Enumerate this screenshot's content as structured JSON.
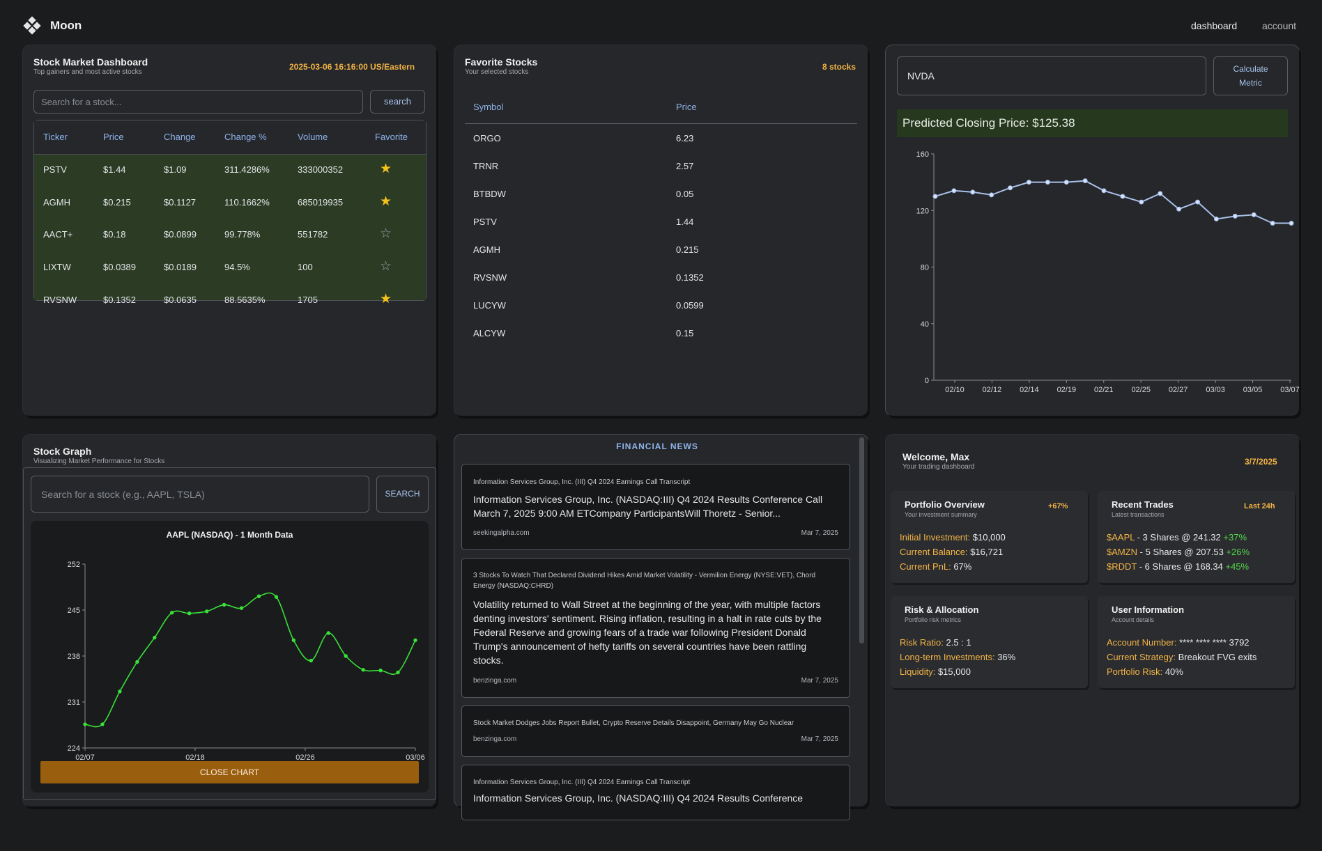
{
  "nav": {
    "brand": "Moon",
    "links": [
      "dashboard",
      "account"
    ]
  },
  "dashboard": {
    "title": "Stock Market Dashboard",
    "subtitle": "Top gainers and most active stocks",
    "datetime": "2025-03-06 16:16:00 US/Eastern",
    "search_placeholder": "Search for a stock...",
    "search_label": "search",
    "columns": [
      "Ticker",
      "Price",
      "Change",
      "Change %",
      "Volume",
      "Favorite"
    ],
    "rows": [
      {
        "ticker": "PSTV",
        "price": "$1.44",
        "change": "$1.09",
        "change_pct": "311.4286%",
        "volume": "333000352",
        "favorite": true
      },
      {
        "ticker": "AGMH",
        "price": "$0.215",
        "change": "$0.1127",
        "change_pct": "110.1662%",
        "volume": "685019935",
        "favorite": true
      },
      {
        "ticker": "AACT+",
        "price": "$0.18",
        "change": "$0.0899",
        "change_pct": "99.778%",
        "volume": "551782",
        "favorite": false
      },
      {
        "ticker": "LIXTW",
        "price": "$0.0389",
        "change": "$0.0189",
        "change_pct": "94.5%",
        "volume": "100",
        "favorite": false
      },
      {
        "ticker": "RVSNW",
        "price": "$0.1352",
        "change": "$0.0635",
        "change_pct": "88.5635%",
        "volume": "1705",
        "favorite": true
      }
    ]
  },
  "favorites": {
    "title": "Favorite Stocks",
    "subtitle": "Your selected stocks",
    "count": "8 stocks",
    "columns": [
      "Symbol",
      "Price"
    ],
    "rows": [
      {
        "symbol": "ORGO",
        "price": "6.23"
      },
      {
        "symbol": "TRNR",
        "price": "2.57"
      },
      {
        "symbol": "BTBDW",
        "price": "0.05"
      },
      {
        "symbol": "PSTV",
        "price": "1.44"
      },
      {
        "symbol": "AGMH",
        "price": "0.215"
      },
      {
        "symbol": "RVSNW",
        "price": "0.1352"
      },
      {
        "symbol": "LUCYW",
        "price": "0.0599"
      },
      {
        "symbol": "ALCYW",
        "price": "0.15"
      }
    ]
  },
  "predict": {
    "ticker_value": "NVDA",
    "button_label": [
      "Calculate",
      "Metric"
    ],
    "banner": "Predicted Closing Price: $125.38"
  },
  "stock_graph": {
    "title": "Stock Graph",
    "subtitle": "Visualizing Market Performance for Stocks",
    "search_placeholder": "Search for a stock (e.g., AAPL, TSLA)",
    "search_label": "SEARCH",
    "close_label": "CLOSE CHART"
  },
  "chart_data": [
    {
      "type": "line",
      "title": "",
      "xlabel": "",
      "ylabel": "",
      "ylim": [
        0,
        160
      ],
      "yticks": [
        0,
        40,
        80,
        120,
        160
      ],
      "grid": false,
      "color": "#aac0ea",
      "x_tick_labels": [
        "02/10",
        "02/12",
        "02/14",
        "02/19",
        "02/21",
        "02/25",
        "02/27",
        "03/03",
        "03/05",
        "03/07"
      ],
      "series": [
        {
          "values": [
            130,
            134,
            133,
            131,
            136,
            140,
            140,
            140,
            141,
            134,
            130,
            126,
            132,
            121,
            126,
            114,
            116,
            117,
            111,
            111
          ]
        }
      ]
    },
    {
      "type": "line",
      "title": "AAPL (NASDAQ) - 1 Month Data",
      "xlabel": "",
      "ylabel": "",
      "ylim": [
        224,
        252
      ],
      "yticks": [
        224,
        231,
        238,
        245,
        252
      ],
      "grid": false,
      "color": "#38e238",
      "x_tick_labels": [
        "02/07",
        "02/18",
        "02/26",
        "03/06"
      ],
      "series": [
        {
          "values": [
            227.6,
            227.6,
            232.6,
            237.1,
            240.8,
            244.6,
            244.5,
            244.8,
            245.8,
            245.3,
            247.1,
            247.0,
            240.4,
            237.3,
            241.5,
            238.0,
            235.9,
            235.8,
            235.5,
            240.4
          ]
        }
      ]
    }
  ],
  "news": {
    "title": "FINANCIAL NEWS",
    "items": [
      {
        "headline": "Information Services Group, Inc. (III) Q4 2024 Earnings Call Transcript",
        "body": "Information Services Group, Inc. (NASDAQ:III) Q4 2024 Results Conference Call March 7, 2025 9:00 AM ETCompany ParticipantsWill Thoretz - Senior...",
        "source": "seekingalpha.com",
        "date": "Mar 7, 2025"
      },
      {
        "headline": "3 Stocks To Watch That Declared Dividend Hikes Amid Market Volatility - Vermilion Energy (NYSE:VET), Chord Energy (NASDAQ:CHRD)",
        "body": "Volatility returned to Wall Street at the beginning of the year, with multiple factors denting investors' sentiment. Rising inflation, resulting in a halt in rate cuts by the Federal Reserve and growing fears of a trade war following President Donald Trump's announcement of hefty tariffs on several countries have been rattling stocks.",
        "source": "benzinga.com",
        "date": "Mar 7, 2025"
      },
      {
        "headline": "Stock Market Dodges Jobs Report Bullet, Crypto Reserve Details Disappoint, Germany May Go Nuclear",
        "body": "",
        "source": "benzinga.com",
        "date": "Mar 7, 2025"
      },
      {
        "headline": "Information Services Group, Inc. (III) Q4 2024 Earnings Call Transcript",
        "body": "Information Services Group, Inc. (NASDAQ:III) Q4 2024 Results Conference",
        "source": "",
        "date": ""
      }
    ]
  },
  "welcome": {
    "title": "Welcome, Max",
    "subtitle": "Your trading dashboard",
    "date": "3/7/2025",
    "portfolio": {
      "title": "Portfolio Overview",
      "subtitle": "Your investment summary",
      "badge": "+67%",
      "lines": [
        {
          "label": "Initial Investment:",
          "value": "$10,000"
        },
        {
          "label": "Current Balance:",
          "value": "$16,721"
        },
        {
          "label": "Current PnL:",
          "value": "67%"
        }
      ]
    },
    "trades": {
      "title": "Recent Trades",
      "subtitle": "Latest transactions",
      "badge": "Last 24h",
      "lines": [
        {
          "label": "$AAPL",
          "value": " - 3 Shares @ 241.32 ",
          "gain": "+37%"
        },
        {
          "label": "$AMZN",
          "value": " - 5 Shares @ 207.53 ",
          "gain": "+26%"
        },
        {
          "label": "$RDDT",
          "value": " - 6 Shares @ 168.34 ",
          "gain": "+45%"
        }
      ]
    },
    "risk": {
      "title": "Risk & Allocation",
      "subtitle": "Portfolio risk metrics",
      "lines": [
        {
          "label": "Risk Ratio:",
          "value": "2.5 : 1"
        },
        {
          "label": "Long-term Investments:",
          "value": "36%"
        },
        {
          "label": "Liquidity:",
          "value": "$15,000"
        }
      ]
    },
    "user": {
      "title": "User Information",
      "subtitle": "Account details",
      "lines": [
        {
          "label": "Account Number:",
          "value": "**** **** **** 3792"
        },
        {
          "label": "Current Strategy:",
          "value": "Breakout FVG exits"
        },
        {
          "label": "Portfolio Risk:",
          "value": "40%"
        }
      ]
    }
  }
}
